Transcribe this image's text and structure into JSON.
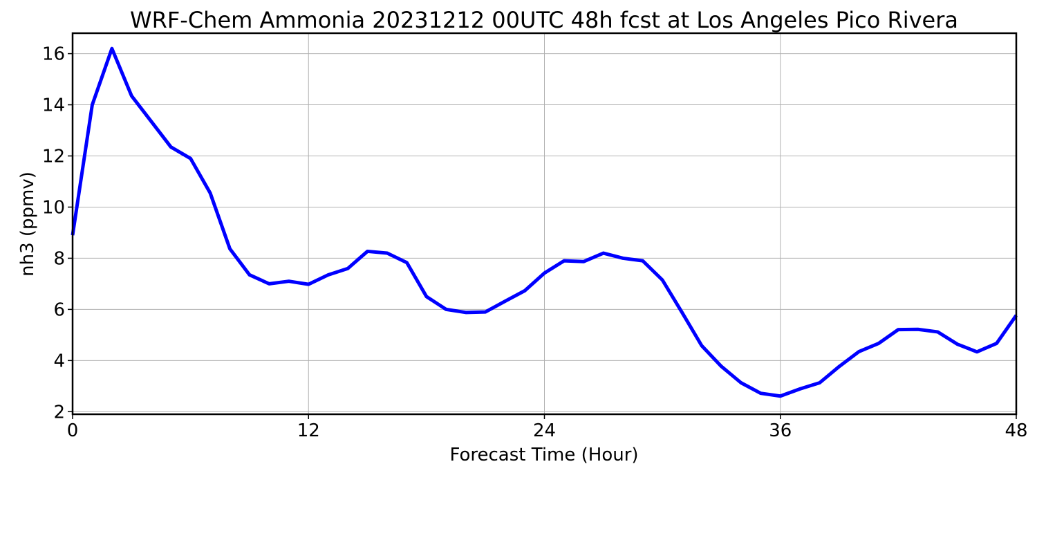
{
  "chart_data": {
    "type": "line",
    "title": "WRF-Chem Ammonia  20231212 00UTC 48h fcst at Los Angeles Pico Rivera",
    "xlabel": "Forecast Time (Hour)",
    "ylabel": "nh3  (ppmv)",
    "xlim": [
      0,
      48
    ],
    "ylim": [
      1.9,
      16.8
    ],
    "xticks": [
      "0",
      "12",
      "24",
      "36",
      "48"
    ],
    "yticks": [
      "2",
      "4",
      "6",
      "8",
      "10",
      "12",
      "14",
      "16"
    ],
    "grid": true,
    "line_color": "#0000ff",
    "series": [
      {
        "x": [
          0,
          1,
          2,
          3,
          4,
          5,
          6,
          7,
          8,
          9,
          10,
          11,
          12,
          13,
          14,
          15,
          16,
          17,
          18,
          19,
          20,
          21,
          22,
          23,
          24,
          25,
          26,
          27,
          28,
          29,
          30,
          31,
          32,
          33,
          34,
          35,
          36,
          37,
          38,
          39,
          40,
          41,
          42,
          43,
          44,
          45,
          46,
          47,
          48
        ],
        "values": [
          8.9,
          14.0,
          16.2,
          14.35,
          13.35,
          12.35,
          11.9,
          10.55,
          8.37,
          7.35,
          7.0,
          7.1,
          6.98,
          7.35,
          7.6,
          8.27,
          8.2,
          7.83,
          6.5,
          6.0,
          5.88,
          5.9,
          6.32,
          6.73,
          7.42,
          7.9,
          7.87,
          8.2,
          8.0,
          7.9,
          7.15,
          5.88,
          4.58,
          3.77,
          3.13,
          2.72,
          2.61,
          2.89,
          3.13,
          3.77,
          4.35,
          4.67,
          5.21,
          5.22,
          5.12,
          4.64,
          4.34,
          4.67,
          5.77
        ]
      }
    ]
  }
}
